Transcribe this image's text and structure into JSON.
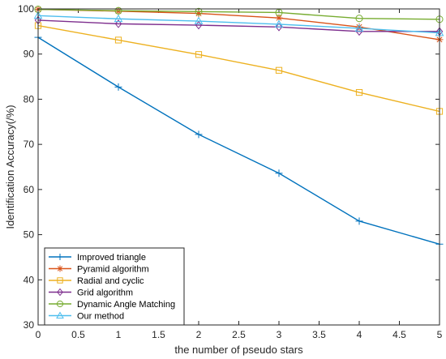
{
  "chart_data": {
    "type": "line",
    "xlabel": "the number of pseudo stars",
    "ylabel": "Identification Accuracy(/%)",
    "xlim": [
      0,
      5
    ],
    "ylim": [
      30,
      100
    ],
    "xticks": [
      "0",
      "0.5",
      "1",
      "1.5",
      "2",
      "2.5",
      "3",
      "3.5",
      "4",
      "4.5",
      "5"
    ],
    "yticks": [
      "30",
      "40",
      "50",
      "60",
      "70",
      "80",
      "90",
      "100"
    ],
    "x": [
      0,
      1,
      2,
      3,
      4,
      5
    ],
    "legend_position": "bottom-left",
    "grid": false,
    "series": [
      {
        "name": "Improved triangle",
        "color": "#0072BD",
        "marker": "plus",
        "values": [
          93.7,
          82.7,
          72.2,
          63.6,
          53.0,
          47.9
        ]
      },
      {
        "name": "Pyramid algorithm",
        "color": "#D95319",
        "marker": "asterisk",
        "values": [
          99.9,
          99.5,
          99.0,
          98.0,
          96.0,
          93.2
        ]
      },
      {
        "name": "Radial and cyclic",
        "color": "#EDB120",
        "marker": "square",
        "values": [
          96.3,
          93.1,
          89.9,
          86.4,
          81.5,
          77.3
        ]
      },
      {
        "name": "Grid algorithm",
        "color": "#7E2F8E",
        "marker": "diamond",
        "values": [
          97.5,
          96.7,
          96.4,
          96.0,
          95.0,
          95.0
        ]
      },
      {
        "name": "Dynamic Angle Matching",
        "color": "#77AC30",
        "marker": "circle",
        "values": [
          99.9,
          99.6,
          99.4,
          99.2,
          97.9,
          97.7
        ]
      },
      {
        "name": "Our method",
        "color": "#4DBEEE",
        "marker": "triangle",
        "values": [
          98.5,
          97.8,
          97.3,
          96.6,
          95.7,
          94.7
        ]
      }
    ]
  }
}
